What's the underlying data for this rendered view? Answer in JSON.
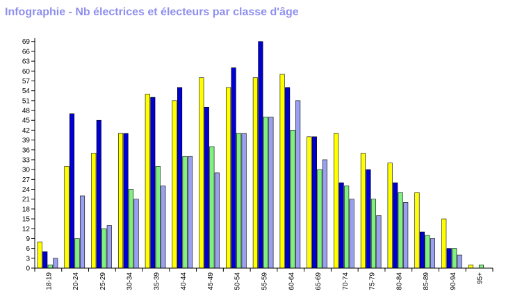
{
  "chart_data": {
    "type": "bar",
    "title": "Infographie - Nb électrices et électeurs par classe d'âge",
    "xlabel": "",
    "ylabel": "",
    "categories": [
      "18-19",
      "20-24",
      "25-29",
      "30-34",
      "35-39",
      "40-44",
      "45-49",
      "50-54",
      "55-59",
      "60-64",
      "65-69",
      "70-74",
      "75-79",
      "80-84",
      "85-89",
      "90-94",
      "95+"
    ],
    "series": [
      {
        "color": "#ffff00",
        "values": [
          8,
          31,
          35,
          41,
          53,
          51,
          58,
          55,
          58,
          59,
          40,
          41,
          35,
          32,
          23,
          15,
          1
        ]
      },
      {
        "color": "#0000d0",
        "values": [
          5,
          47,
          45,
          41,
          52,
          55,
          49,
          61,
          69,
          55,
          40,
          26,
          30,
          26,
          11,
          6,
          0
        ]
      },
      {
        "color": "#80f080",
        "values": [
          1,
          9,
          12,
          24,
          31,
          34,
          37,
          41,
          46,
          42,
          30,
          25,
          21,
          23,
          10,
          6,
          1
        ]
      },
      {
        "color": "#9aa0f0",
        "values": [
          3,
          22,
          13,
          21,
          25,
          34,
          29,
          41,
          46,
          51,
          33,
          21,
          16,
          20,
          9,
          4,
          0
        ]
      }
    ],
    "ylim": [
      0,
      70
    ],
    "yticks": [
      0,
      3,
      6,
      9,
      12,
      15,
      18,
      21,
      24,
      27,
      30,
      33,
      36,
      39,
      42,
      45,
      48,
      51,
      54,
      57,
      60,
      63,
      66,
      69
    ],
    "grid": false,
    "legend": "none"
  }
}
